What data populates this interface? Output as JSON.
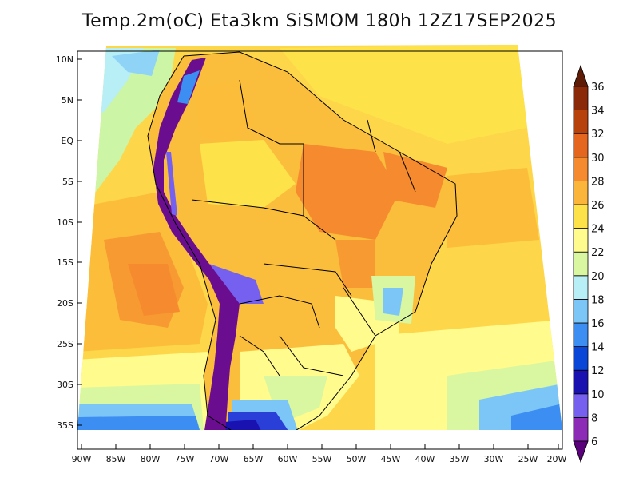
{
  "title": "Temp.2m(oC) Eta3km SiSMOM 180h 12Z17SEP2025",
  "lat_ticks": [
    "10N",
    "5N",
    "EQ",
    "5S",
    "10S",
    "15S",
    "20S",
    "25S",
    "30S",
    "35S"
  ],
  "lon_ticks": [
    "90W",
    "85W",
    "80W",
    "75W",
    "70W",
    "65W",
    "60W",
    "55W",
    "50W",
    "45W",
    "40W",
    "35W",
    "30W",
    "25W",
    "20W"
  ],
  "colorbar": {
    "labels": [
      "6",
      "8",
      "10",
      "12",
      "14",
      "16",
      "18",
      "20",
      "22",
      "24",
      "26",
      "28",
      "30",
      "32",
      "34",
      "36"
    ],
    "colors": [
      "#5a007a",
      "#8c2bb5",
      "#7660f0",
      "#1a12b0",
      "#0a47d8",
      "#3c8ef2",
      "#7cc6f7",
      "#b8eef5",
      "#d8f7a0",
      "#fffb8c",
      "#fde24a",
      "#fbb53a",
      "#f68a2e",
      "#e5661e",
      "#b8420c",
      "#8a2a08",
      "#5e1c06"
    ]
  },
  "colors": {
    "ocean_warm": "#fcd24a",
    "land_main": "#fbbe3c",
    "andes": "#6a0e8f",
    "south_cold": "#2a3fd8"
  }
}
